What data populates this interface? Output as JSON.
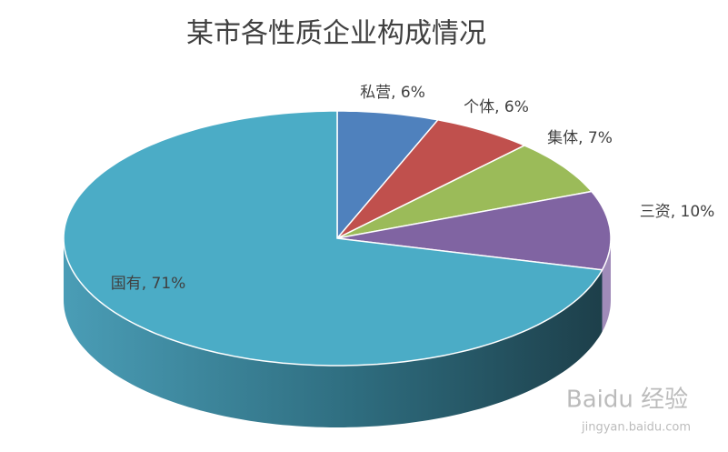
{
  "chart_data": {
    "type": "pie3d",
    "title": "某市各性质企业构成情况",
    "categories": [
      "私营",
      "个体",
      "集体",
      "三资",
      "国有"
    ],
    "values": [
      6,
      6,
      7,
      10,
      71
    ],
    "value_labels": [
      "6%",
      "6%",
      "7%",
      "10%",
      "71%"
    ],
    "label_separator": ", ",
    "colors": [
      "#4f81bd",
      "#c0504d",
      "#9bbb59",
      "#8064a2",
      "#4bacc6"
    ]
  },
  "watermark": {
    "logo": "Baidu 经验",
    "url": "jingyan.baidu.com"
  }
}
